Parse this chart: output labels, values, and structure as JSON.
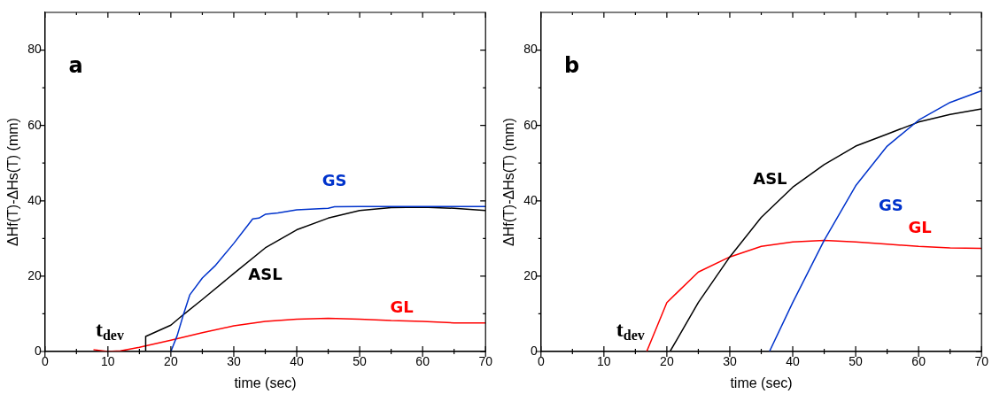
{
  "chart_data": [
    {
      "type": "line",
      "xlabel": "time (sec)",
      "ylabel": "ΔHf(T)-ΔHs(T) (mm)",
      "xlim": [
        0,
        70
      ],
      "ylim": [
        0,
        90
      ],
      "xticks": [
        0,
        {
          "value": 5,
          "label": null
        },
        10,
        {
          "value": 15,
          "label": null
        },
        20,
        {
          "value": 25,
          "label": null
        },
        30,
        {
          "value": 35,
          "label": null
        },
        40,
        {
          "value": 45,
          "label": null
        },
        50,
        {
          "value": 55,
          "label": null
        },
        60,
        {
          "value": 65,
          "label": null
        },
        70
      ],
      "yticks": [
        0,
        {
          "value": 10,
          "label": null
        },
        20,
        {
          "value": 30,
          "label": null
        },
        40,
        {
          "value": 50,
          "label": null
        },
        60,
        {
          "value": 70,
          "label": null
        },
        80
      ],
      "series": [
        {
          "name": "GS",
          "color": "#0033cc",
          "x": [
            20,
            21,
            22,
            23,
            25,
            27,
            30,
            32,
            33,
            34,
            35,
            37,
            40,
            45,
            46,
            50,
            60,
            70
          ],
          "values": [
            0,
            4.2,
            9.8,
            15,
            19.5,
            22.7,
            28.7,
            33,
            35.2,
            35.4,
            36.4,
            36.8,
            37.6,
            38,
            38.4,
            38.5,
            38.5,
            38.5
          ]
        },
        {
          "name": "ASL",
          "color": "#000000",
          "x": [
            16,
            16,
            20,
            22,
            25,
            30,
            35,
            40,
            45,
            50,
            55,
            60,
            65,
            70
          ],
          "values": [
            0,
            4,
            7,
            9.8,
            13.8,
            20.7,
            27.5,
            32.3,
            35.4,
            37.4,
            38.2,
            38.3,
            38,
            37.4
          ]
        },
        {
          "name": "GL",
          "color": "#ff0000",
          "x": [
            7.7,
            10,
            12,
            15,
            20,
            25,
            30,
            35,
            40,
            45,
            50,
            55,
            60,
            65,
            70
          ],
          "values": [
            0.5,
            0,
            0.2,
            1.1,
            3,
            5,
            6.8,
            8,
            8.6,
            8.8,
            8.6,
            8.2,
            8,
            7.6,
            7.6
          ]
        }
      ],
      "annotations": [
        "t$_{dev}$",
        "a"
      ]
    },
    {
      "type": "line",
      "xlabel": "time (sec)",
      "ylabel": "ΔHf(T)-ΔHs(T) (mm)",
      "xlim": [
        0,
        70
      ],
      "ylim": [
        0,
        90
      ],
      "xticks": [
        0,
        {
          "value": 5,
          "label": null
        },
        10,
        {
          "value": 15,
          "label": null
        },
        20,
        {
          "value": 25,
          "label": null
        },
        30,
        {
          "value": 35,
          "label": null
        },
        40,
        {
          "value": 45,
          "label": null
        },
        50,
        {
          "value": 55,
          "label": null
        },
        60,
        {
          "value": 65,
          "label": null
        },
        70
      ],
      "yticks": [
        0,
        {
          "value": 10,
          "label": null
        },
        20,
        {
          "value": 30,
          "label": null
        },
        40,
        {
          "value": 50,
          "label": null
        },
        60,
        {
          "value": 70,
          "label": null
        },
        80
      ],
      "series": [
        {
          "name": "GS",
          "color": "#0033cc",
          "x": [
            36.3,
            40,
            45,
            50,
            55,
            60,
            65,
            70
          ],
          "values": [
            0,
            13,
            29.5,
            44,
            54.5,
            61.4,
            66.1,
            69.2
          ]
        },
        {
          "name": "ASL",
          "color": "#000000",
          "x": [
            20.5,
            25,
            30,
            35,
            40,
            45,
            50,
            55,
            60,
            65,
            70
          ],
          "values": [
            0,
            13,
            25.1,
            35.6,
            43.6,
            49.6,
            54.5,
            57.7,
            60.9,
            62.9,
            64.4
          ]
        },
        {
          "name": "GL",
          "color": "#ff0000",
          "x": [
            16.8,
            20,
            25,
            30,
            35,
            40,
            45,
            50,
            55,
            60,
            65,
            70
          ],
          "values": [
            0,
            13,
            21.1,
            25.1,
            27.9,
            29.1,
            29.5,
            29.1,
            28.5,
            27.9,
            27.5,
            27.4
          ]
        }
      ],
      "annotations": [
        "t$_{dev}$",
        "b"
      ]
    }
  ]
}
